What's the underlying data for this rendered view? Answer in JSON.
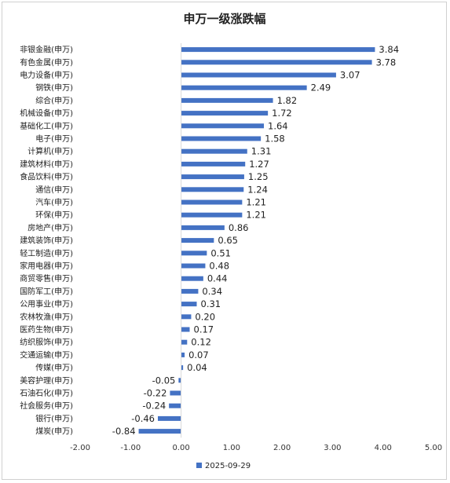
{
  "chart_data": {
    "type": "bar",
    "orientation": "horizontal",
    "title": "申万一级涨跌幅",
    "categories": [
      "非银金融(申万)",
      "有色金属(申万)",
      "电力设备(申万)",
      "钢铁(申万)",
      "综合(申万)",
      "机械设备(申万)",
      "基础化工(申万)",
      "电子(申万)",
      "计算机(申万)",
      "建筑材料(申万)",
      "食品饮料(申万)",
      "通信(申万)",
      "汽车(申万)",
      "环保(申万)",
      "房地产(申万)",
      "建筑装饰(申万)",
      "轻工制造(申万)",
      "家用电器(申万)",
      "商贸零售(申万)",
      "国防军工(申万)",
      "公用事业(申万)",
      "农林牧渔(申万)",
      "医药生物(申万)",
      "纺织服饰(申万)",
      "交通运输(申万)",
      "传媒(申万)",
      "美容护理(申万)",
      "石油石化(申万)",
      "社会服务(申万)",
      "银行(申万)",
      "煤炭(申万)"
    ],
    "series": [
      {
        "name": "2025-09-29",
        "color": "#4472C4",
        "values": [
          3.84,
          3.78,
          3.07,
          2.49,
          1.82,
          1.72,
          1.64,
          1.58,
          1.31,
          1.27,
          1.25,
          1.24,
          1.21,
          1.21,
          0.86,
          0.65,
          0.51,
          0.48,
          0.44,
          0.34,
          0.31,
          0.2,
          0.17,
          0.12,
          0.07,
          0.04,
          -0.05,
          -0.22,
          -0.24,
          -0.46,
          -0.84
        ],
        "labels": [
          "3.84",
          "3.78",
          "3.07",
          "2.49",
          "1.82",
          "1.72",
          "1.64",
          "1.58",
          "1.31",
          "1.27",
          "1.25",
          "1.24",
          "1.21",
          "1.21",
          "0.86",
          "0.65",
          "0.51",
          "0.48",
          "0.44",
          "0.34",
          "0.31",
          "0.20",
          "0.17",
          "0.12",
          "0.07",
          "0.04",
          "-0.05",
          "-0.22",
          "-0.24",
          "-0.46",
          "-0.84"
        ]
      }
    ],
    "xlim": [
      -2.0,
      5.0
    ],
    "xticks": [
      -2.0,
      -1.0,
      0.0,
      1.0,
      2.0,
      3.0,
      4.0,
      5.0
    ],
    "xtick_labels": [
      "-2.00",
      "-1.00",
      "0.00",
      "1.00",
      "2.00",
      "3.00",
      "4.00",
      "5.00"
    ],
    "grid": false,
    "legend_position": "bottom"
  }
}
